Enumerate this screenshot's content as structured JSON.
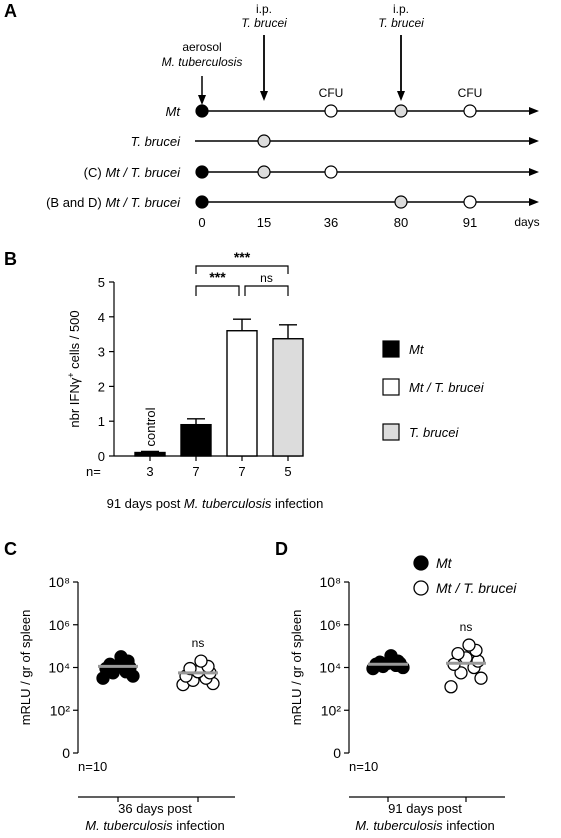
{
  "panels": {
    "A": {
      "label": "A",
      "annotations": [
        {
          "line1": "aerosol",
          "line2": "M. tuberculosis"
        },
        {
          "line1": "i.p.",
          "line2": "T. brucei"
        },
        {
          "line1": "i.p.",
          "line2": "T. brucei"
        }
      ],
      "cfu_labels": [
        "CFU",
        "CFU"
      ],
      "rows": [
        {
          "label_plain": "",
          "label_italic": "Mt"
        },
        {
          "label_plain": "",
          "label_italic": "T. brucei"
        },
        {
          "label_plain": "(C) ",
          "label_italic": "Mt / T. brucei"
        },
        {
          "label_plain": "(B and D) ",
          "label_italic": "Mt / T. brucei"
        }
      ],
      "days": [
        "0",
        "15",
        "36",
        "80",
        "91"
      ],
      "days_unit": "days"
    },
    "B": {
      "label": "B",
      "n_prefix": "n=",
      "footer_plain": "91 days post ",
      "footer_italic": "M. tuberculosis",
      "footer_end": " infection"
    },
    "C": {
      "label": "C",
      "n_label": "n=10",
      "footer_line1": "36 days post",
      "footer_line2_italic": "M. tuberculosis",
      "footer_line2_end": " infection"
    },
    "D": {
      "label": "D",
      "n_label": "n=10",
      "footer_line1": "91 days post",
      "footer_line2_italic": "M. tuberculosis",
      "footer_line2_end": " infection"
    }
  },
  "chart_data": [
    {
      "type": "timeline",
      "x_ticks": [
        0,
        15,
        36,
        80,
        91
      ],
      "x_unit": "days",
      "events": [
        {
          "day": 0,
          "label": "aerosol M. tuberculosis"
        },
        {
          "day": 15,
          "label": "i.p. T. brucei"
        },
        {
          "day": 80,
          "label": "i.p. T. brucei"
        }
      ],
      "rows": [
        {
          "name": "Mt",
          "markers": [
            {
              "day": 0,
              "fill": "black"
            },
            {
              "day": 36,
              "fill": "white"
            },
            {
              "day": 80,
              "fill": "grey"
            },
            {
              "day": 91,
              "fill": "white"
            }
          ]
        },
        {
          "name": "T. brucei",
          "markers": [
            {
              "day": 15,
              "fill": "grey"
            }
          ]
        },
        {
          "name": "(C) Mt / T. brucei",
          "markers": [
            {
              "day": 0,
              "fill": "black"
            },
            {
              "day": 15,
              "fill": "grey"
            },
            {
              "day": 36,
              "fill": "white"
            }
          ]
        },
        {
          "name": "(B and D) Mt / T. brucei",
          "markers": [
            {
              "day": 0,
              "fill": "black"
            },
            {
              "day": 80,
              "fill": "grey"
            },
            {
              "day": 91,
              "fill": "white"
            }
          ]
        }
      ],
      "cfu_days": [
        36,
        91
      ]
    },
    {
      "type": "bar",
      "ylabel": "nbr IFNγ+ cells / 500",
      "ylim": [
        0,
        5
      ],
      "yticks": [
        0,
        1,
        2,
        3,
        4,
        5
      ],
      "bars": [
        {
          "label": "control",
          "value": 0.1,
          "error": 0.03,
          "n": 3,
          "fill": "#000000"
        },
        {
          "label": "Mt",
          "value": 0.9,
          "error": 0.17,
          "n": 7,
          "fill": "#000000"
        },
        {
          "label": "Mt / T. brucei",
          "value": 3.6,
          "error": 0.33,
          "n": 7,
          "fill": "#ffffff"
        },
        {
          "label": "T. brucei",
          "value": 3.37,
          "error": 0.4,
          "n": 5,
          "fill": "#dcdcdc"
        }
      ],
      "control_label": "control",
      "legend": [
        {
          "name": "Mt",
          "fill": "#000000"
        },
        {
          "name": "Mt / T. brucei",
          "fill": "#ffffff"
        },
        {
          "name": "T. brucei",
          "fill": "#dcdcdc"
        }
      ],
      "legend_position": "right",
      "significance": [
        {
          "from": 1,
          "to": 3,
          "label": "***"
        },
        {
          "from": 1,
          "to": 2,
          "label": "***"
        },
        {
          "from": 2,
          "to": 3,
          "label": "ns"
        }
      ],
      "xlabel": "91 days post M. tuberculosis infection"
    },
    {
      "type": "scatter",
      "ylabel": "mRLU / gr of spleen",
      "yscale": "log",
      "ytick_labels": [
        "0",
        "10²",
        "10⁴",
        "10⁶",
        "10⁸"
      ],
      "ytick_exponents": [
        0,
        2,
        4,
        6,
        8
      ],
      "groups": [
        {
          "name": "Mt",
          "fill": "black",
          "median_exp": 4.05,
          "points_exp": [
            3.5,
            3.6,
            3.75,
            3.8,
            3.95,
            4.0,
            4.1,
            4.15,
            4.3,
            4.5
          ]
        },
        {
          "name": "Mt / T. brucei",
          "fill": "white",
          "median_exp": 3.75,
          "points_exp": [
            3.2,
            3.25,
            3.4,
            3.5,
            3.6,
            3.75,
            3.8,
            3.95,
            4.05,
            4.3
          ]
        }
      ],
      "significance": "ns",
      "n": "n=10",
      "xlabel": "36 days post M. tuberculosis infection"
    },
    {
      "type": "scatter",
      "ylabel": "mRLU / gr of spleen",
      "yscale": "log",
      "ytick_labels": [
        "0",
        "10²",
        "10⁴",
        "10⁶",
        "10⁸"
      ],
      "ytick_exponents": [
        0,
        2,
        4,
        6,
        8
      ],
      "groups": [
        {
          "name": "Mt",
          "fill": "black",
          "median_exp": 4.15,
          "points_exp": [
            3.95,
            4.0,
            4.05,
            4.1,
            4.15,
            4.2,
            4.2,
            4.25,
            4.3,
            4.55
          ]
        },
        {
          "name": "Mt / T. brucei",
          "fill": "white",
          "median_exp": 4.2,
          "points_exp": [
            3.1,
            3.5,
            3.75,
            4.0,
            4.15,
            4.3,
            4.45,
            4.65,
            4.8,
            5.05
          ]
        }
      ],
      "legend": [
        {
          "name": "Mt",
          "fill": "black"
        },
        {
          "name": "Mt / T. brucei",
          "fill": "white"
        }
      ],
      "legend_position": "top",
      "significance": "ns",
      "n": "n=10",
      "xlabel": "91 days post M. tuberculosis infection"
    }
  ]
}
